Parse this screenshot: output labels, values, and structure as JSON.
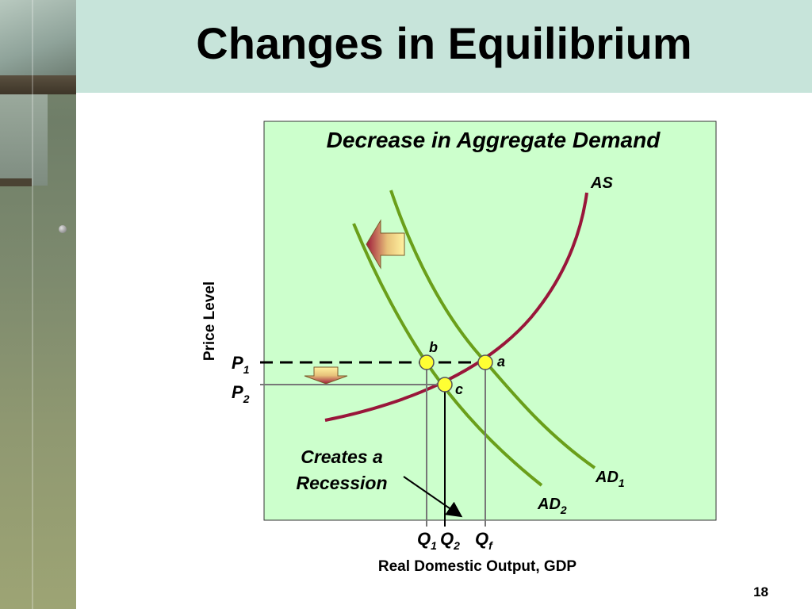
{
  "slide": {
    "title": "Changes in Equilibrium",
    "page_number": "18"
  },
  "diagram": {
    "heading": "Decrease in Aggregate Demand",
    "y_axis_label": "Price Level",
    "x_axis_label": "Real Domestic Output, GDP",
    "curves": {
      "as": {
        "main": "AS",
        "sub": ""
      },
      "ad1": {
        "main": "AD",
        "sub": "1"
      },
      "ad2": {
        "main": "AD",
        "sub": "2"
      }
    },
    "price_labels": {
      "p1": {
        "main": "P",
        "sub": "1"
      },
      "p2": {
        "main": "P",
        "sub": "2"
      }
    },
    "quantity_labels": {
      "q1": {
        "main": "Q",
        "sub": "1"
      },
      "q2": {
        "main": "Q",
        "sub": "2"
      },
      "qf": {
        "main": "Q",
        "sub": "f"
      }
    },
    "points": {
      "a": "a",
      "b": "b",
      "c": "c"
    },
    "annotation": {
      "line1": "Creates a",
      "line2": "Recession"
    },
    "colors": {
      "panel_bg": "#ccffcc",
      "title_band": "#c7e4da",
      "as_curve": "#99163a",
      "ad_curve": "#6a9f1a",
      "point_fill": "#ffff33"
    }
  }
}
